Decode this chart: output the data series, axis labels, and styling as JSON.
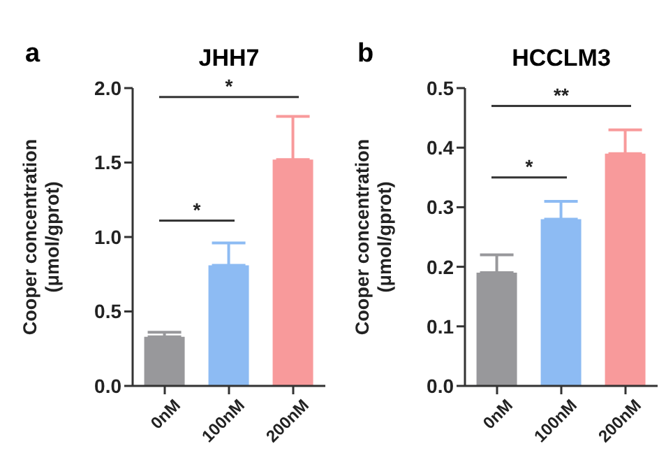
{
  "chart_data": [
    {
      "type": "bar",
      "title": "JHH7",
      "ylabel": "Cooper concentration\n(μmol/gprot)",
      "categories": [
        "0nM",
        "100nM",
        "200nM"
      ],
      "values": [
        0.33,
        0.81,
        1.52
      ],
      "colors": [
        "#98989b",
        "#8dbbf3",
        "#f89a9b"
      ],
      "errors": [
        [
          0.33,
          0.36
        ],
        [
          0.81,
          0.96
        ],
        [
          1.52,
          1.81
        ]
      ],
      "ylim": [
        0,
        2
      ],
      "yticks": [
        {
          "value": 0,
          "label": "0.0"
        },
        0.5,
        {
          "value": 1,
          "label": "1.0"
        },
        1.5,
        {
          "value": 2,
          "label": "2.0"
        }
      ],
      "annotations": [
        "a",
        "*",
        "*"
      ]
    },
    {
      "type": "bar",
      "title": "HCCLM3",
      "ylabel": "Cooper concentration\n(μmol/gprot)",
      "categories": [
        "0nM",
        "100nM",
        "200nM"
      ],
      "values": [
        0.19,
        0.28,
        0.39
      ],
      "colors": [
        "#98989b",
        "#8dbbf3",
        "#f89a9b"
      ],
      "errors": [
        [
          0.19,
          0.22
        ],
        [
          0.28,
          0.31
        ],
        [
          0.39,
          0.43
        ]
      ],
      "ylim": [
        0,
        0.5
      ],
      "yticks": [
        {
          "value": 0,
          "label": "0.0"
        },
        0.1,
        0.2,
        0.3,
        0.4,
        0.5
      ],
      "annotations": [
        "b",
        "**",
        "*"
      ]
    }
  ]
}
